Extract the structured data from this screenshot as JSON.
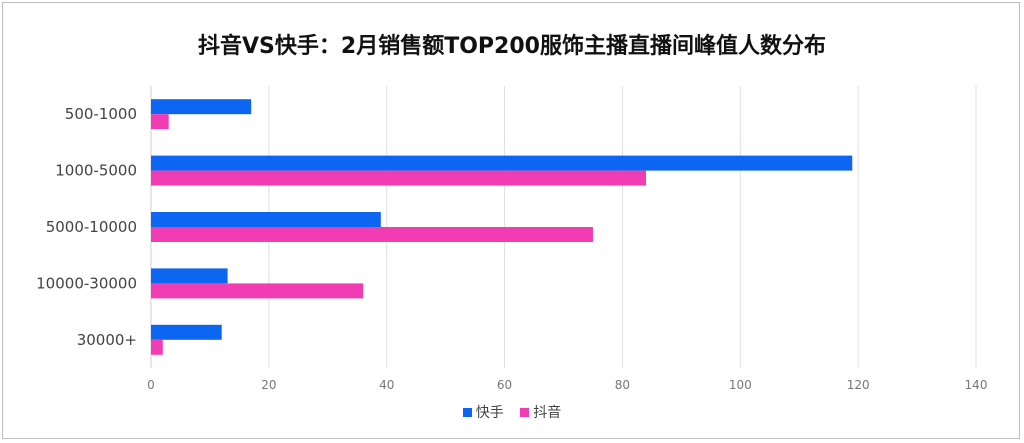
{
  "chart_data": {
    "type": "bar",
    "orientation": "horizontal",
    "title": "抖音VS快手：2月销售额TOP200服饰主播直播间峰值人数分布",
    "categories": [
      "500-1000",
      "1000-5000",
      "5000-10000",
      "10000-30000",
      "30000+"
    ],
    "series": [
      {
        "name": "快手",
        "color": "#0d66f2",
        "values": [
          17,
          119,
          39,
          13,
          12
        ]
      },
      {
        "name": "抖音",
        "color": "#f23cb4",
        "values": [
          3,
          84,
          75,
          36,
          2
        ]
      }
    ],
    "xlim": [
      0,
      140
    ],
    "xticks": [
      "0",
      "20",
      "40",
      "60",
      "80",
      "100",
      "120",
      "140"
    ],
    "grid": true,
    "legend": "bottom"
  }
}
